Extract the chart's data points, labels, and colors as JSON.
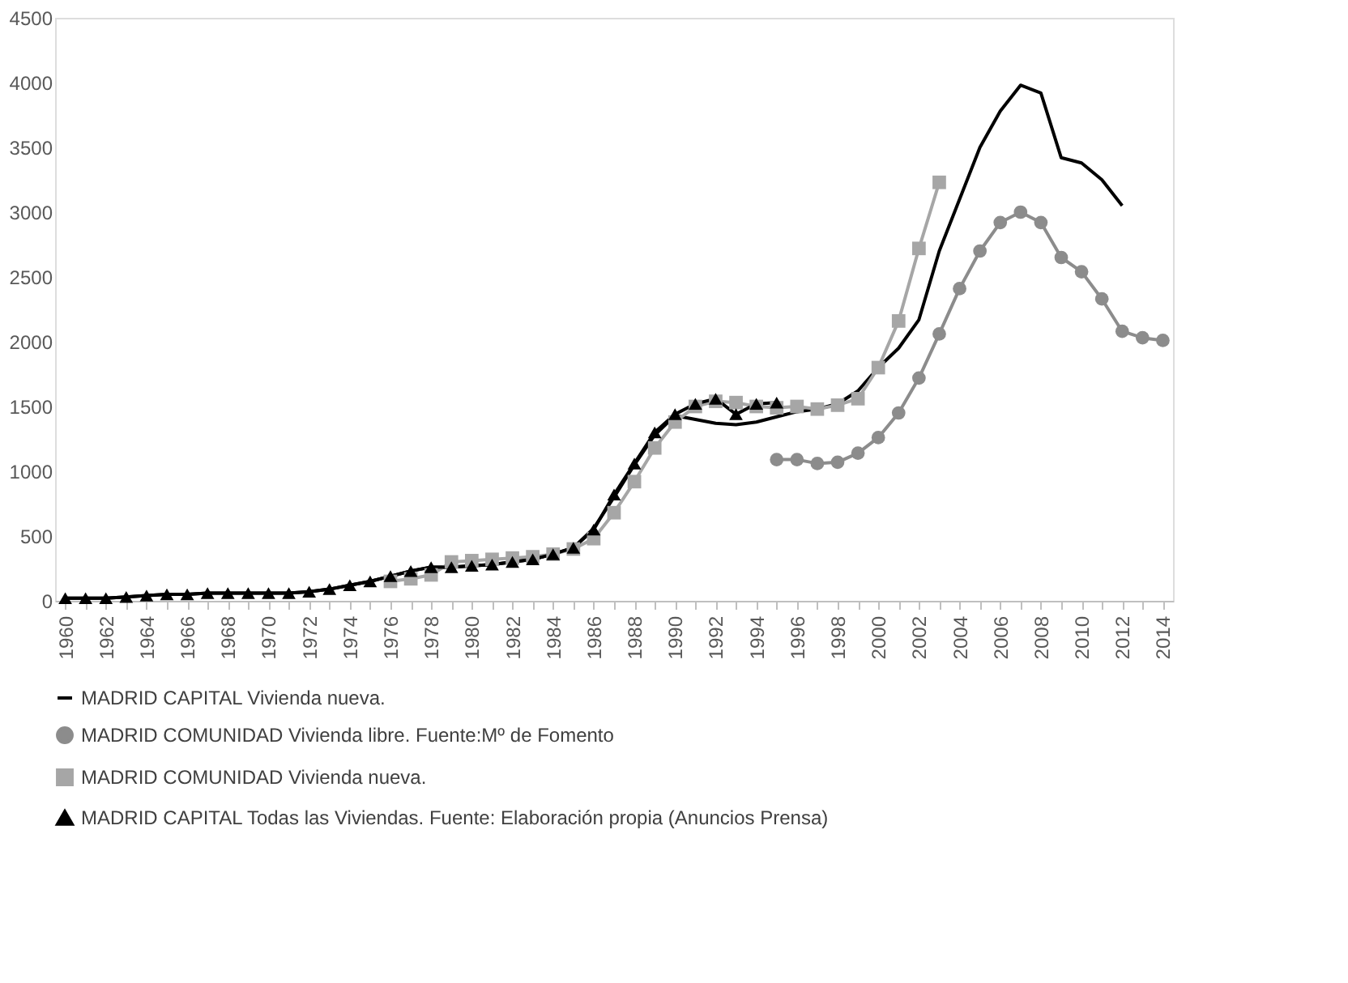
{
  "chart_data": {
    "type": "line",
    "categories": [
      "1960",
      null,
      "1962",
      null,
      "1964",
      null,
      "1966",
      null,
      "1968",
      null,
      "1970",
      null,
      "1972",
      null,
      "1974",
      null,
      "1976",
      null,
      "1978",
      null,
      "1980",
      null,
      "1982",
      null,
      "1984",
      null,
      "1986",
      null,
      "1988",
      null,
      "1990",
      null,
      "1992",
      null,
      "1994",
      null,
      "1996",
      null,
      "1998",
      null,
      "2000",
      null,
      "2002",
      null,
      "2004",
      null,
      "2006",
      null,
      "2008",
      null,
      "2010",
      null,
      "2012",
      null,
      "2014"
    ],
    "series": [
      {
        "name": "MADRID CAPITAL Vivienda nueva.",
        "color": "#000000",
        "marker": "none",
        "values": [
          20,
          20,
          20,
          30,
          40,
          50,
          50,
          60,
          60,
          60,
          60,
          60,
          70,
          90,
          120,
          150,
          190,
          230,
          260,
          260,
          270,
          280,
          300,
          320,
          360,
          410,
          560,
          800,
          1050,
          1280,
          1430,
          1400,
          1370,
          1360,
          1380,
          1420,
          1460,
          1480,
          1520,
          1620,
          1800,
          1950,
          2170,
          2700,
          3100,
          3500,
          3780,
          3980,
          3920,
          3420,
          3380,
          3250,
          3050,
          null,
          null
        ]
      },
      {
        "name": "MADRID COMUNIDAD Vivienda libre. Fuente:Mº de Fomento",
        "color": "#8c8c8c",
        "marker": "circle",
        "values": [
          null,
          null,
          null,
          null,
          null,
          null,
          null,
          null,
          null,
          null,
          null,
          null,
          null,
          null,
          null,
          null,
          null,
          null,
          null,
          null,
          null,
          null,
          null,
          null,
          null,
          null,
          null,
          null,
          null,
          null,
          null,
          null,
          null,
          null,
          null,
          1090,
          1090,
          1060,
          1070,
          1140,
          1260,
          1450,
          1720,
          2060,
          2410,
          2700,
          2920,
          3000,
          2920,
          2650,
          2540,
          2330,
          2080,
          2030,
          2010
        ]
      },
      {
        "name": "MADRID COMUNIDAD Vivienda nueva.",
        "color": "#a6a6a6",
        "marker": "square",
        "values": [
          null,
          null,
          null,
          null,
          null,
          null,
          null,
          null,
          null,
          null,
          null,
          null,
          null,
          null,
          null,
          null,
          150,
          170,
          200,
          300,
          310,
          320,
          330,
          340,
          360,
          400,
          480,
          680,
          920,
          1180,
          1380,
          1500,
          1540,
          1530,
          1500,
          1490,
          1500,
          1480,
          1510,
          1560,
          1800,
          2160,
          2720,
          3230,
          null,
          null,
          null,
          null,
          null,
          null,
          null,
          null,
          null,
          null,
          null
        ]
      },
      {
        "name": "MADRID CAPITAL Todas las Viviendas.  Fuente: Elaboración propia (Anuncios Prensa)",
        "color": "#000000",
        "marker": "triangle",
        "values": [
          20,
          20,
          20,
          30,
          40,
          50,
          50,
          60,
          60,
          60,
          60,
          60,
          70,
          90,
          120,
          150,
          190,
          230,
          260,
          260,
          270,
          280,
          300,
          320,
          360,
          410,
          550,
          820,
          1060,
          1300,
          1440,
          1520,
          1560,
          1440,
          1520,
          1530,
          null,
          null,
          null,
          null,
          null,
          null,
          null,
          null,
          null,
          null,
          null,
          null,
          null,
          null,
          null,
          null,
          null,
          null,
          null
        ]
      }
    ],
    "ylim": [
      0,
      4500
    ],
    "yticks": [
      0,
      500,
      1000,
      1500,
      2000,
      2500,
      3000,
      3500,
      4000,
      4500
    ],
    "grid": false,
    "legend": "bottom",
    "line_style": "solid"
  }
}
